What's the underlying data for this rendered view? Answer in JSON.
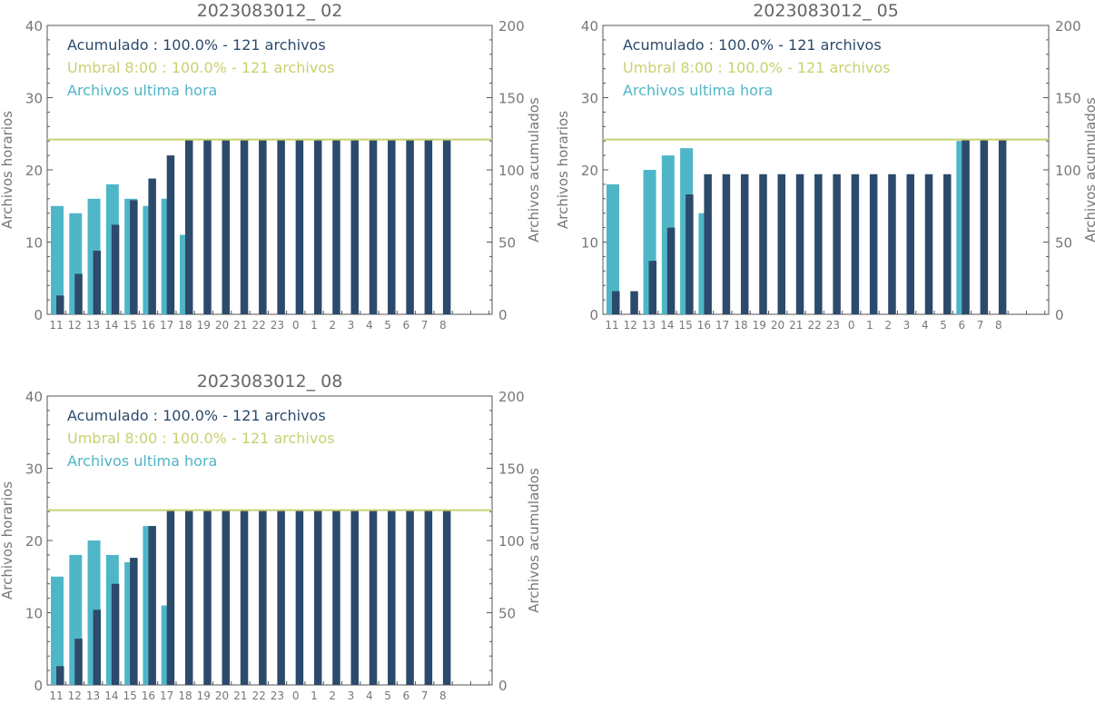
{
  "colors": {
    "hourly_bar": "#4fb6c7",
    "cumulative_bar": "#2c4a6b",
    "threshold_line": "#c8d171",
    "axis": "#555555",
    "title": "#666666",
    "label": "#777777"
  },
  "chart_data": [
    {
      "type": "bar",
      "title": "2023083012_ 02",
      "ylabel_left": "Archivos horarios",
      "ylabel_right": "Archivos acumulados",
      "ylim_left": [
        0,
        40
      ],
      "ylim_right": [
        0,
        200
      ],
      "yticks_left": [
        "0",
        "10",
        "20",
        "30",
        "40"
      ],
      "yticks_right": [
        "0",
        "50",
        "100",
        "150",
        "200"
      ],
      "categories": [
        "11",
        "12",
        "13",
        "14",
        "15",
        "16",
        "17",
        "18",
        "19",
        "20",
        "21",
        "22",
        "23",
        "0",
        "1",
        "2",
        "3",
        "4",
        "5",
        "6",
        "7",
        "8"
      ],
      "legend": [
        {
          "label": "Acumulado : 100.0% - 121 archivos",
          "color": "#2c4a6b"
        },
        {
          "label": "Umbral 8:00 : 100.0% - 121 archivos",
          "color": "#c8d171"
        },
        {
          "label": "Archivos ultima hora",
          "color": "#4fb6c7"
        }
      ],
      "series": [
        {
          "name": "Archivos ultima hora",
          "axis": "left",
          "values": [
            15,
            14,
            16,
            18,
            16,
            15,
            16,
            11,
            null,
            null,
            null,
            null,
            null,
            null,
            null,
            null,
            null,
            null,
            null,
            null,
            null,
            null
          ]
        },
        {
          "name": "Acumulado",
          "axis": "right",
          "values": [
            13,
            28,
            44,
            62,
            79,
            94,
            110,
            121,
            121,
            121,
            121,
            121,
            121,
            121,
            121,
            121,
            121,
            121,
            121,
            121,
            121,
            121
          ]
        }
      ],
      "threshold": 121
    },
    {
      "type": "bar",
      "title": "2023083012_ 05",
      "ylabel_left": "Archivos horarios",
      "ylabel_right": "Archivos acumulados",
      "ylim_left": [
        0,
        40
      ],
      "ylim_right": [
        0,
        200
      ],
      "yticks_left": [
        "0",
        "10",
        "20",
        "30",
        "40"
      ],
      "yticks_right": [
        "0",
        "50",
        "100",
        "150",
        "200"
      ],
      "categories": [
        "11",
        "12",
        "13",
        "14",
        "15",
        "16",
        "17",
        "18",
        "19",
        "20",
        "21",
        "22",
        "23",
        "0",
        "1",
        "2",
        "3",
        "4",
        "5",
        "6",
        "7",
        "8"
      ],
      "legend": [
        {
          "label": "Acumulado : 100.0% - 121 archivos",
          "color": "#2c4a6b"
        },
        {
          "label": "Umbral 8:00 : 100.0% - 121 archivos",
          "color": "#c8d171"
        },
        {
          "label": "Archivos ultima hora",
          "color": "#4fb6c7"
        }
      ],
      "series": [
        {
          "name": "Archivos ultima hora",
          "axis": "left",
          "values": [
            18,
            null,
            20,
            22,
            23,
            14,
            null,
            null,
            null,
            null,
            null,
            null,
            null,
            null,
            null,
            null,
            null,
            null,
            null,
            24,
            null,
            null
          ]
        },
        {
          "name": "Acumulado",
          "axis": "right",
          "values": [
            16,
            16,
            37,
            60,
            83,
            97,
            97,
            97,
            97,
            97,
            97,
            97,
            97,
            97,
            97,
            97,
            97,
            97,
            97,
            121,
            121,
            121
          ]
        }
      ],
      "threshold": 121
    },
    {
      "type": "bar",
      "title": "2023083012_ 08",
      "ylabel_left": "Archivos horarios",
      "ylabel_right": "Archivos acumulados",
      "ylim_left": [
        0,
        40
      ],
      "ylim_right": [
        0,
        200
      ],
      "yticks_left": [
        "0",
        "10",
        "20",
        "30",
        "40"
      ],
      "yticks_right": [
        "0",
        "50",
        "100",
        "150",
        "200"
      ],
      "categories": [
        "11",
        "12",
        "13",
        "14",
        "15",
        "16",
        "17",
        "18",
        "19",
        "20",
        "21",
        "22",
        "23",
        "0",
        "1",
        "2",
        "3",
        "4",
        "5",
        "6",
        "7",
        "8"
      ],
      "legend": [
        {
          "label": "Acumulado : 100.0% - 121 archivos",
          "color": "#2c4a6b"
        },
        {
          "label": "Umbral 8:00 : 100.0% - 121 archivos",
          "color": "#c8d171"
        },
        {
          "label": "Archivos ultima hora",
          "color": "#4fb6c7"
        }
      ],
      "series": [
        {
          "name": "Archivos ultima hora",
          "axis": "left",
          "values": [
            15,
            18,
            20,
            18,
            17,
            22,
            11,
            null,
            null,
            null,
            null,
            null,
            null,
            null,
            null,
            null,
            null,
            null,
            null,
            null,
            null,
            null
          ]
        },
        {
          "name": "Acumulado",
          "axis": "right",
          "values": [
            13,
            32,
            52,
            70,
            88,
            110,
            121,
            121,
            121,
            121,
            121,
            121,
            121,
            121,
            121,
            121,
            121,
            121,
            121,
            121,
            121,
            121
          ]
        }
      ],
      "threshold": 121
    }
  ]
}
